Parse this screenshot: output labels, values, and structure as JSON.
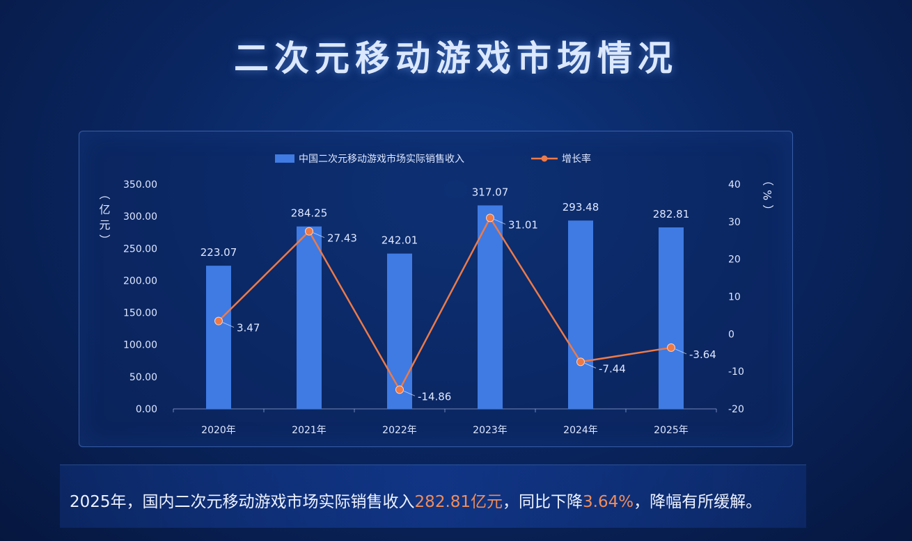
{
  "title": "二次元移动游戏市场情况",
  "chart_data": {
    "type": "bar",
    "categories": [
      "2020年",
      "2021年",
      "2022年",
      "2023年",
      "2024年",
      "2025年"
    ],
    "series": [
      {
        "name": "中国二次元移动游戏市场实际销售收入",
        "type": "bar",
        "axis": "left",
        "values": [
          223.07,
          284.25,
          242.01,
          317.07,
          293.48,
          282.81
        ],
        "labels": [
          "223.07",
          "284.25",
          "242.01",
          "317.07",
          "293.48",
          "282.81"
        ]
      },
      {
        "name": "增长率",
        "type": "line",
        "axis": "right",
        "values": [
          3.47,
          27.43,
          -14.86,
          31.01,
          -7.44,
          -3.64
        ],
        "labels": [
          "3.47",
          "27.43",
          "-14.86",
          "31.01",
          "-7.44",
          "-3.64"
        ]
      }
    ],
    "y_left": {
      "label": "（亿元）",
      "min": 0,
      "max": 350,
      "ticks": [
        "0.00",
        "50.00",
        "100.00",
        "150.00",
        "200.00",
        "250.00",
        "300.00",
        "350.00"
      ]
    },
    "y_right": {
      "label": "（%）",
      "min": -20,
      "max": 40,
      "ticks": [
        "-20",
        "-10",
        "0",
        "10",
        "20",
        "30",
        "40"
      ]
    },
    "legend": "top",
    "grid": false,
    "colors": {
      "bar": "#3f7be3",
      "line": "#ee7a47",
      "axis_text": "#dfe8ff"
    }
  },
  "summary": {
    "before": "2025年，国内二次元移动游戏市场实际销售收入",
    "revenue": "282.81亿元",
    "middle": "，同比下降",
    "decline": "3.64%",
    "after": "，降幅有所缓解。"
  }
}
